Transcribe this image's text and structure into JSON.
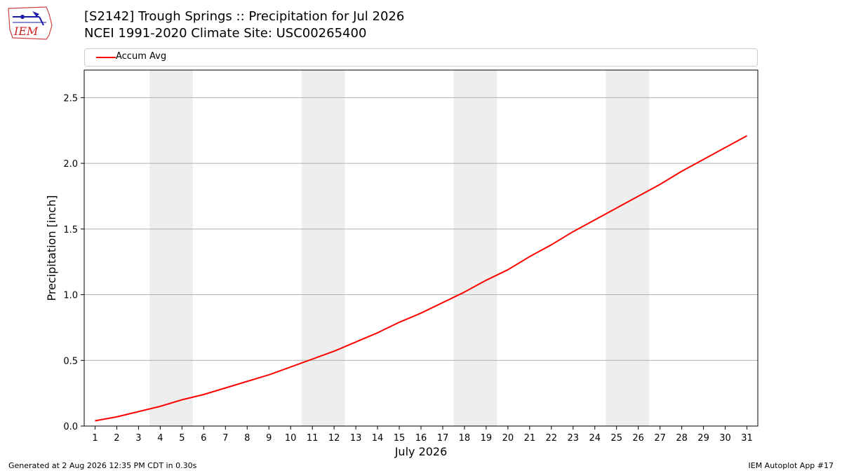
{
  "header": {
    "title_line1": "[S2142] Trough Springs :: Precipitation for Jul 2026",
    "title_line2": "NCEI 1991-2020 Climate Site: USC00265400",
    "logo_text": "IEM"
  },
  "footer": {
    "left": "Generated at 2 Aug 2026 12:35 PM CDT in 0.30s",
    "right": "IEM Autoplot App #17"
  },
  "chart_data": {
    "type": "line",
    "xlabel": "July 2026",
    "ylabel": "Precipitation [inch]",
    "x": [
      1,
      2,
      3,
      4,
      5,
      6,
      7,
      8,
      9,
      10,
      11,
      12,
      13,
      14,
      15,
      16,
      17,
      18,
      19,
      20,
      21,
      22,
      23,
      24,
      25,
      26,
      27,
      28,
      29,
      30,
      31
    ],
    "xlim": [
      0.5,
      31.5
    ],
    "ylim": [
      0,
      2.71
    ],
    "yticks": [
      0.0,
      0.5,
      1.0,
      1.5,
      2.0,
      2.5
    ],
    "ytick_labels": [
      "0.0",
      "0.5",
      "1.0",
      "1.5",
      "2.0",
      "2.5"
    ],
    "grid": "y",
    "legend": "top",
    "weekend_shading": [
      [
        3.5,
        5.5
      ],
      [
        10.5,
        12.5
      ],
      [
        17.5,
        19.5
      ],
      [
        24.5,
        26.5
      ]
    ],
    "series": [
      {
        "name": "Accum Avg",
        "color": "#ff0000",
        "values": [
          0.04,
          0.07,
          0.11,
          0.15,
          0.2,
          0.24,
          0.29,
          0.34,
          0.39,
          0.45,
          0.51,
          0.57,
          0.64,
          0.71,
          0.79,
          0.86,
          0.94,
          1.02,
          1.11,
          1.19,
          1.29,
          1.38,
          1.48,
          1.57,
          1.66,
          1.75,
          1.84,
          1.94,
          2.03,
          2.12,
          2.21
        ]
      }
    ]
  }
}
